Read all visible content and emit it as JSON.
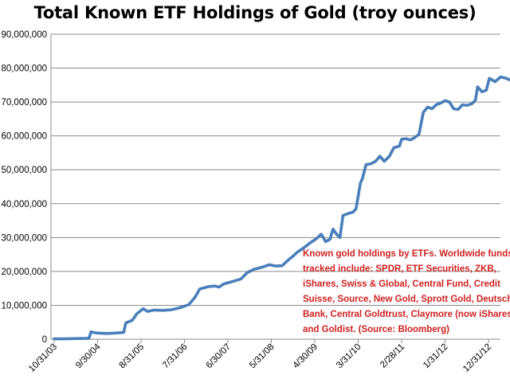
{
  "chart_data": {
    "type": "line",
    "title": "Total Known ETF Holdings of Gold (troy ounces)",
    "xlabel": "",
    "ylabel": "",
    "ylim": [
      0,
      90000000
    ],
    "grid": "horizontal",
    "yticks": [
      0,
      10000000,
      20000000,
      30000000,
      40000000,
      50000000,
      60000000,
      70000000,
      80000000,
      90000000
    ],
    "ytick_labels": [
      "0",
      "10,000,000",
      "20,000,000",
      "30,000,000",
      "40,000,000",
      "50,000,000",
      "60,000,000",
      "70,000,000",
      "80,000,000",
      "90,000,000"
    ],
    "xtick_labels": [
      "10/31/03",
      "9/30/04",
      "8/31/05",
      "7/31/06",
      "6/30/07",
      "5/31/08",
      "4/30/09",
      "3/31/10",
      "2/28/11",
      "1/31/12",
      "12/31/12"
    ],
    "xlim_index": [
      0,
      11.3
    ],
    "series": [
      {
        "name": "Total Known ETF Holdings of Gold",
        "color": "#4a7ebb",
        "points": [
          [
            0,
            100000
          ],
          [
            0.3,
            150000
          ],
          [
            0.6,
            200000
          ],
          [
            0.8,
            250000
          ],
          [
            0.85,
            2200000
          ],
          [
            0.9,
            2000000
          ],
          [
            1.0,
            1800000
          ],
          [
            1.2,
            1700000
          ],
          [
            1.4,
            1800000
          ],
          [
            1.6,
            2000000
          ],
          [
            1.65,
            4800000
          ],
          [
            1.8,
            5600000
          ],
          [
            1.9,
            7500000
          ],
          [
            2.05,
            9000000
          ],
          [
            2.15,
            8200000
          ],
          [
            2.3,
            8600000
          ],
          [
            2.5,
            8500000
          ],
          [
            2.7,
            8700000
          ],
          [
            2.9,
            9300000
          ],
          [
            3.1,
            10200000
          ],
          [
            3.25,
            12500000
          ],
          [
            3.35,
            14800000
          ],
          [
            3.55,
            15500000
          ],
          [
            3.7,
            15700000
          ],
          [
            3.8,
            15400000
          ],
          [
            3.9,
            16300000
          ],
          [
            4.1,
            17000000
          ],
          [
            4.3,
            17800000
          ],
          [
            4.45,
            19700000
          ],
          [
            4.6,
            20600000
          ],
          [
            4.8,
            21300000
          ],
          [
            4.95,
            22000000
          ],
          [
            5.1,
            21600000
          ],
          [
            5.25,
            21700000
          ],
          [
            5.4,
            23500000
          ],
          [
            5.5,
            24500000
          ],
          [
            5.6,
            25700000
          ],
          [
            5.75,
            27000000
          ],
          [
            5.9,
            28500000
          ],
          [
            6.05,
            29800000
          ],
          [
            6.15,
            31000000
          ],
          [
            6.25,
            28800000
          ],
          [
            6.35,
            29500000
          ],
          [
            6.42,
            32500000
          ],
          [
            6.5,
            31000000
          ],
          [
            6.58,
            30000000
          ],
          [
            6.65,
            36500000
          ],
          [
            6.75,
            37000000
          ],
          [
            6.88,
            37500000
          ],
          [
            6.95,
            38500000
          ],
          [
            7.05,
            46000000
          ],
          [
            7.1,
            47500000
          ],
          [
            7.18,
            51500000
          ],
          [
            7.3,
            51800000
          ],
          [
            7.4,
            52500000
          ],
          [
            7.5,
            54000000
          ],
          [
            7.6,
            52500000
          ],
          [
            7.72,
            54000000
          ],
          [
            7.82,
            56500000
          ],
          [
            7.95,
            57000000
          ],
          [
            8.0,
            59000000
          ],
          [
            8.1,
            59200000
          ],
          [
            8.2,
            58800000
          ],
          [
            8.3,
            59500000
          ],
          [
            8.4,
            60500000
          ],
          [
            8.5,
            67000000
          ],
          [
            8.6,
            68500000
          ],
          [
            8.7,
            68000000
          ],
          [
            8.8,
            69200000
          ],
          [
            8.9,
            69700000
          ],
          [
            9.0,
            70400000
          ],
          [
            9.1,
            70000000
          ],
          [
            9.2,
            68000000
          ],
          [
            9.3,
            67800000
          ],
          [
            9.4,
            69200000
          ],
          [
            9.5,
            69000000
          ],
          [
            9.62,
            69500000
          ],
          [
            9.7,
            70500000
          ],
          [
            9.75,
            74500000
          ],
          [
            9.85,
            73000000
          ],
          [
            9.95,
            73500000
          ],
          [
            10.02,
            77000000
          ],
          [
            10.15,
            76000000
          ],
          [
            10.28,
            77400000
          ],
          [
            10.4,
            77000000
          ],
          [
            10.5,
            76500000
          ],
          [
            10.6,
            77500000
          ],
          [
            10.68,
            78000000
          ],
          [
            10.75,
            81000000
          ],
          [
            10.85,
            83500000
          ],
          [
            10.95,
            84300000
          ],
          [
            11.05,
            84700000
          ],
          [
            11.12,
            84000000
          ],
          [
            11.2,
            82000000
          ],
          [
            11.25,
            79500000
          ],
          [
            11.3,
            78200000
          ]
        ]
      }
    ],
    "annotation": {
      "lines": [
        "Known gold holdings by ETFs. Worldwide funds",
        "tracked include: SPDR, ETF Securities, ZKB,",
        "iShares, Swiss & Global, Central Fund, Credit",
        "Suisse, Source, New Gold, Sprott Gold, Deutsche",
        "Bank, Central Goldtrust, Claymore (now iShares),",
        "and Goldist. (Source: Bloomberg)"
      ],
      "color": "#d02020"
    }
  }
}
